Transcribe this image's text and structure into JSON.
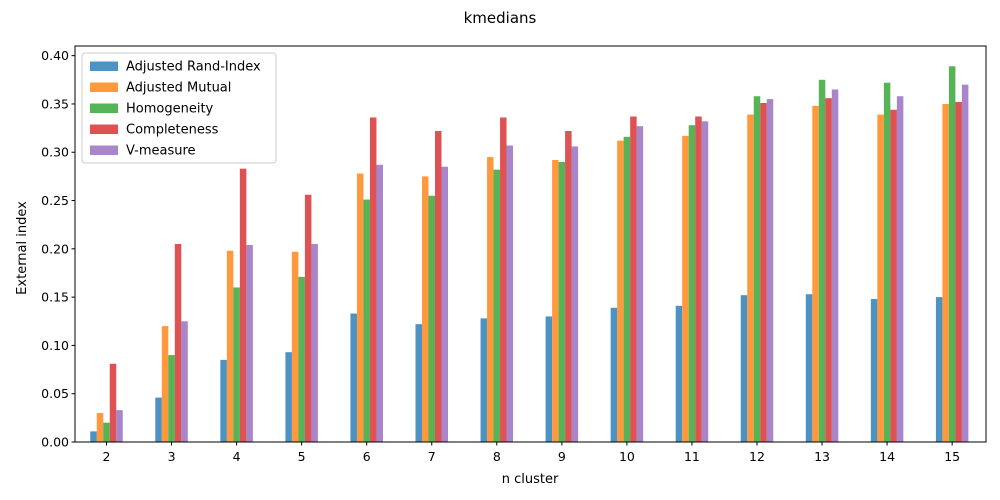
{
  "chart_data": {
    "type": "bar",
    "title": "kmedians",
    "xlabel": "n cluster",
    "ylabel": "External index",
    "categories": [
      "2",
      "3",
      "4",
      "5",
      "6",
      "7",
      "8",
      "9",
      "10",
      "11",
      "12",
      "13",
      "14",
      "15"
    ],
    "ylim": [
      0,
      0.41
    ],
    "yticks": [
      "0.00",
      "0.05",
      "0.10",
      "0.15",
      "0.20",
      "0.25",
      "0.30",
      "0.35",
      "0.40"
    ],
    "ytick_values": [
      0,
      0.05,
      0.1,
      0.15,
      0.2,
      0.25,
      0.3,
      0.35,
      0.4
    ],
    "legend_position": "top-left",
    "grid": false,
    "series": [
      {
        "name": "Adjusted Rand-Index",
        "color": "#1f77b4",
        "values": [
          0.011,
          0.046,
          0.085,
          0.093,
          0.133,
          0.122,
          0.128,
          0.13,
          0.139,
          0.141,
          0.152,
          0.153,
          0.148,
          0.15
        ]
      },
      {
        "name": "Adjusted Mutual",
        "color": "#ff7f0e",
        "values": [
          0.03,
          0.12,
          0.198,
          0.197,
          0.278,
          0.275,
          0.295,
          0.292,
          0.312,
          0.317,
          0.339,
          0.348,
          0.339,
          0.35
        ]
      },
      {
        "name": "Homogeneity",
        "color": "#2ca02c",
        "values": [
          0.02,
          0.09,
          0.16,
          0.171,
          0.251,
          0.255,
          0.282,
          0.29,
          0.316,
          0.328,
          0.358,
          0.375,
          0.372,
          0.389
        ]
      },
      {
        "name": "Completeness",
        "color": "#d62728",
        "values": [
          0.081,
          0.205,
          0.283,
          0.256,
          0.336,
          0.322,
          0.336,
          0.322,
          0.337,
          0.337,
          0.351,
          0.356,
          0.344,
          0.352
        ]
      },
      {
        "name": "V-measure",
        "color": "#9467bd",
        "values": [
          0.033,
          0.125,
          0.204,
          0.205,
          0.287,
          0.285,
          0.307,
          0.306,
          0.327,
          0.332,
          0.355,
          0.365,
          0.358,
          0.37
        ]
      }
    ]
  }
}
